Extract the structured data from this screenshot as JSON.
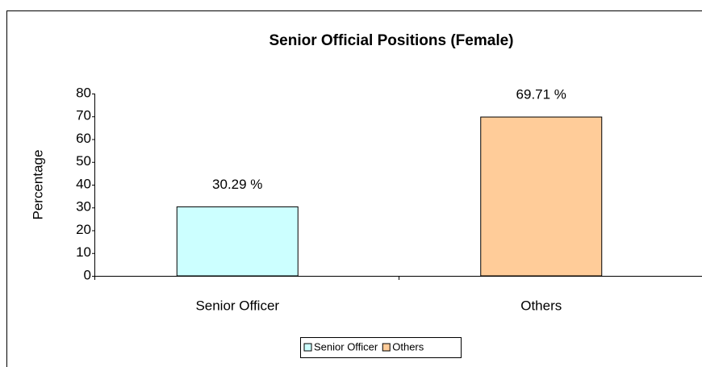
{
  "chart_data": {
    "type": "bar",
    "title": "Senior Official Positions (Female)",
    "y_label": "Percentage",
    "categories": [
      "Senior Officer",
      "Others"
    ],
    "values": [
      30.29,
      69.71
    ],
    "value_labels": [
      "30.29 %",
      "69.71 %"
    ],
    "colors": [
      "#ccffff",
      "#ffcc99"
    ],
    "ylim": [
      0,
      80
    ],
    "yticks": [
      0,
      10,
      20,
      30,
      40,
      50,
      60,
      70,
      80
    ],
    "legend": "bottom"
  }
}
